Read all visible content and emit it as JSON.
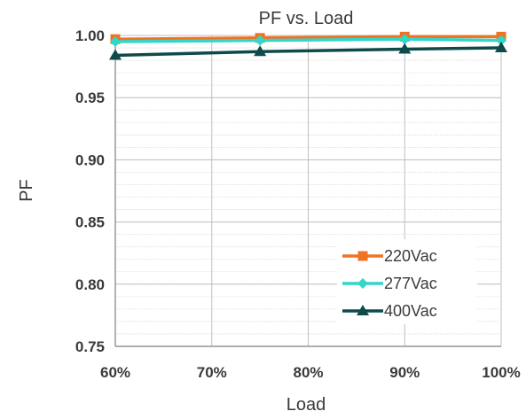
{
  "chart_data": {
    "type": "line",
    "title": "PF vs. Load",
    "xlabel": "Load",
    "ylabel": "PF",
    "x": [
      60,
      75,
      90,
      100
    ],
    "xticks": [
      60,
      70,
      80,
      90,
      100
    ],
    "xtick_labels": [
      "60%",
      "70%",
      "80%",
      "90%",
      "100%"
    ],
    "xlim": [
      60,
      100
    ],
    "ylim": [
      0.75,
      1.0
    ],
    "yticks": [
      0.75,
      0.8,
      0.85,
      0.9,
      0.95,
      1.0
    ],
    "ytick_labels": [
      "0.75",
      "0.80",
      "0.85",
      "0.90",
      "0.95",
      "1.00"
    ],
    "grid": true,
    "legend_position": "bottom-right",
    "series": [
      {
        "name": "220Vac",
        "color": "#f07323",
        "marker": "square",
        "values": [
          0.997,
          0.998,
          0.999,
          0.999
        ]
      },
      {
        "name": "277Vac",
        "color": "#33d6c9",
        "marker": "diamond",
        "values": [
          0.995,
          0.996,
          0.997,
          0.996
        ]
      },
      {
        "name": "400Vac",
        "color": "#0f4a4a",
        "marker": "triangle",
        "values": [
          0.984,
          0.987,
          0.989,
          0.99
        ]
      }
    ]
  }
}
